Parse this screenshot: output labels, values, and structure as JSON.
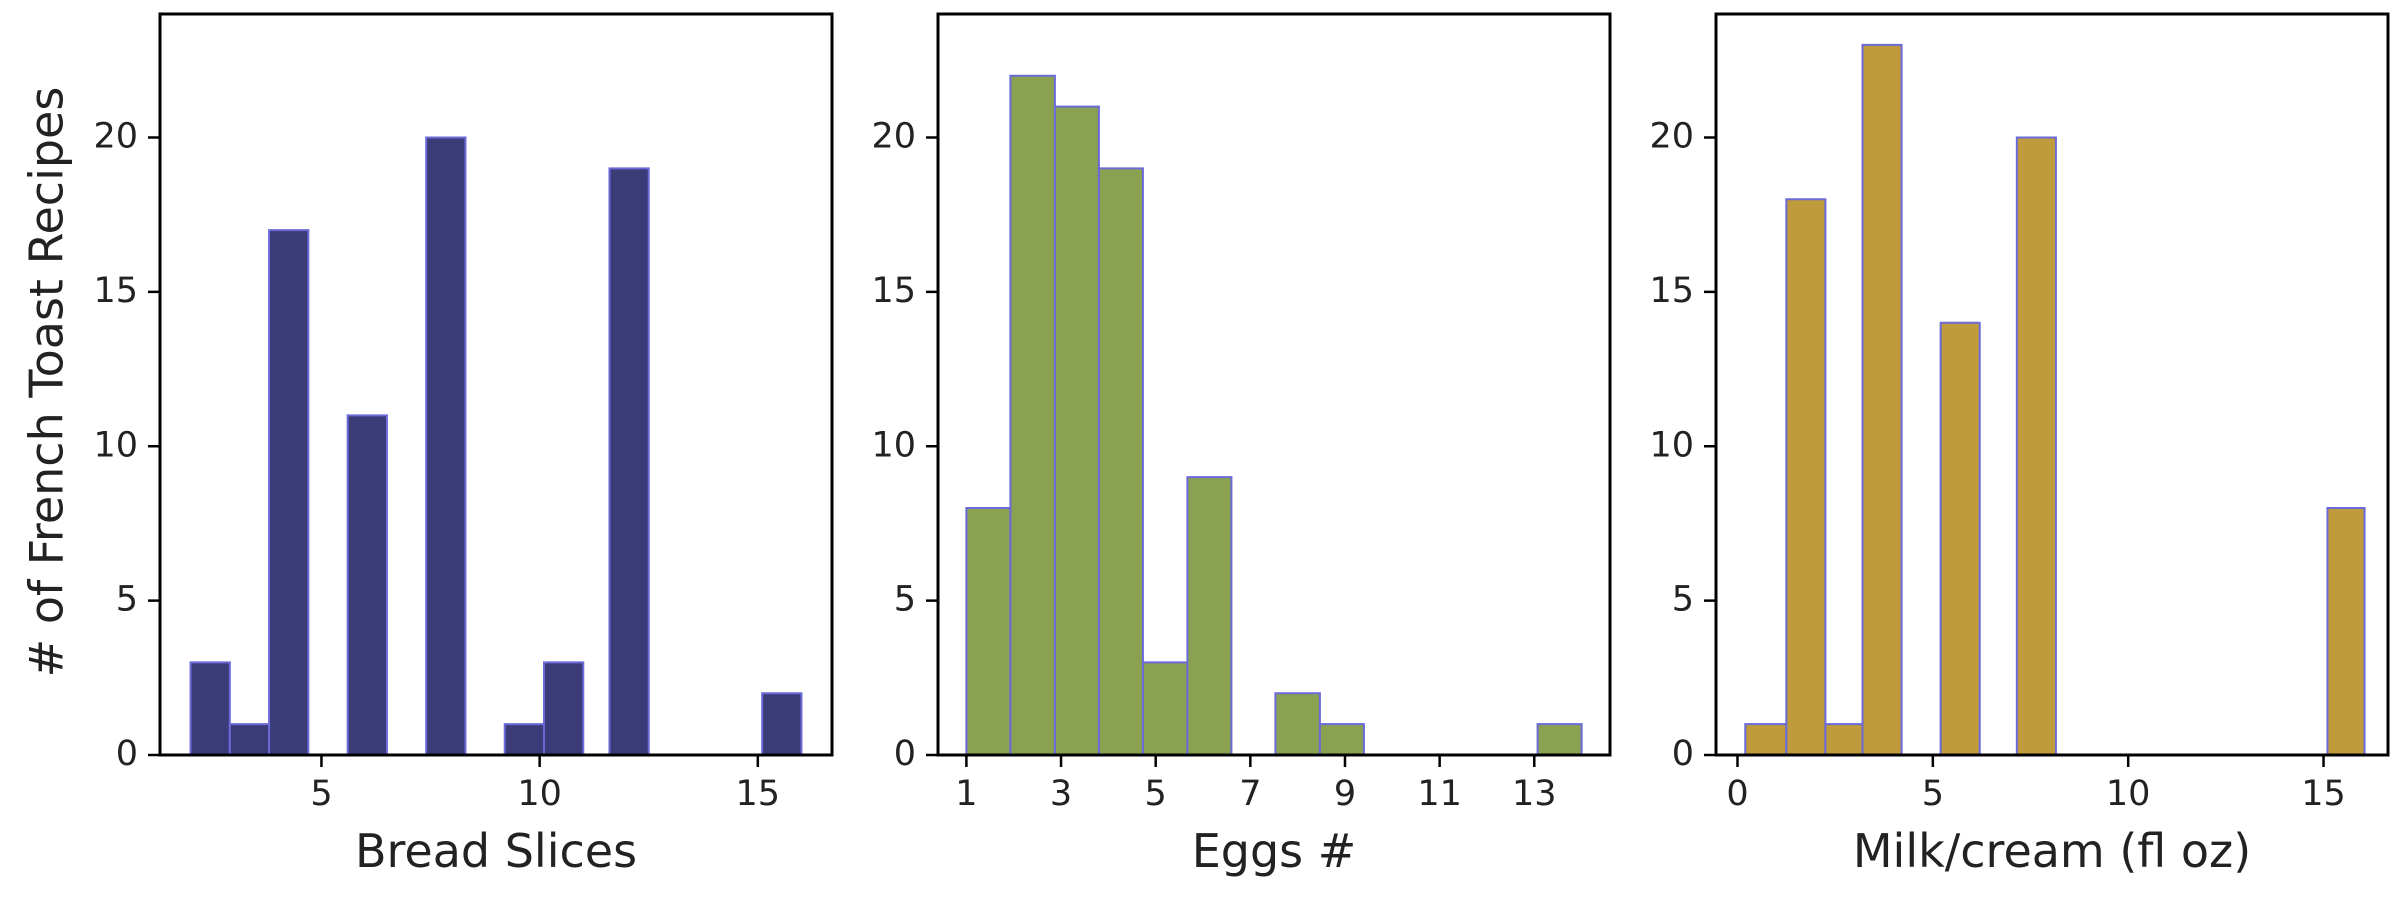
{
  "figure": {
    "shared_ylabel": "# of French Toast Recipes"
  },
  "chart_data": [
    {
      "type": "bar",
      "xlabel": "Bread Slices",
      "ylabel": "# of French Toast Recipes",
      "xlim": [
        1.3,
        16.7
      ],
      "ylim": [
        0,
        24
      ],
      "xticks": [
        5,
        10,
        15
      ],
      "yticks": [
        0,
        5,
        10,
        15,
        20
      ],
      "bar_color": "#3a3b77",
      "edge_color": "#6a6ad8",
      "bins": [
        {
          "x0": 2.0,
          "x1": 2.9,
          "count": 3
        },
        {
          "x0": 2.9,
          "x1": 3.8,
          "count": 1
        },
        {
          "x0": 3.8,
          "x1": 4.7,
          "count": 17
        },
        {
          "x0": 5.6,
          "x1": 6.5,
          "count": 11
        },
        {
          "x0": 7.4,
          "x1": 8.3,
          "count": 20
        },
        {
          "x0": 9.2,
          "x1": 10.1,
          "count": 1
        },
        {
          "x0": 10.1,
          "x1": 11.0,
          "count": 3
        },
        {
          "x0": 11.6,
          "x1": 12.5,
          "count": 19
        },
        {
          "x0": 15.1,
          "x1": 16.0,
          "count": 2
        }
      ]
    },
    {
      "type": "bar",
      "xlabel": "Eggs #",
      "ylabel": "",
      "xlim": [
        0.4,
        14.6
      ],
      "ylim": [
        0,
        24
      ],
      "xticks": [
        1,
        3,
        5,
        7,
        9,
        11,
        13
      ],
      "yticks": [
        0,
        5,
        10,
        15,
        20
      ],
      "bar_color": "#8ba152",
      "edge_color": "#6a6ad8",
      "bins": [
        {
          "x0": 1.0,
          "x1": 1.93,
          "count": 8
        },
        {
          "x0": 1.93,
          "x1": 2.87,
          "count": 22
        },
        {
          "x0": 2.87,
          "x1": 3.8,
          "count": 21
        },
        {
          "x0": 3.8,
          "x1": 4.73,
          "count": 19
        },
        {
          "x0": 4.73,
          "x1": 5.67,
          "count": 3
        },
        {
          "x0": 5.67,
          "x1": 6.6,
          "count": 9
        },
        {
          "x0": 7.53,
          "x1": 8.47,
          "count": 2
        },
        {
          "x0": 8.47,
          "x1": 9.4,
          "count": 1
        },
        {
          "x0": 13.07,
          "x1": 14.0,
          "count": 1
        }
      ]
    },
    {
      "type": "bar",
      "xlabel": "Milk/cream (fl oz)",
      "ylabel": "",
      "xlim": [
        -0.55,
        16.65
      ],
      "ylim": [
        0,
        24
      ],
      "xticks": [
        0,
        5,
        10,
        15
      ],
      "yticks": [
        0,
        5,
        10,
        15,
        20
      ],
      "bar_color": "#c09b3b",
      "edge_color": "#6a6ad8",
      "bins": [
        {
          "x0": 0.2,
          "x1": 1.25,
          "count": 1
        },
        {
          "x0": 1.25,
          "x1": 2.25,
          "count": 18
        },
        {
          "x0": 2.25,
          "x1": 3.2,
          "count": 1
        },
        {
          "x0": 3.2,
          "x1": 4.2,
          "count": 23
        },
        {
          "x0": 5.2,
          "x1": 6.2,
          "count": 14
        },
        {
          "x0": 7.15,
          "x1": 8.15,
          "count": 20
        },
        {
          "x0": 15.1,
          "x1": 16.05,
          "count": 8
        }
      ]
    }
  ]
}
